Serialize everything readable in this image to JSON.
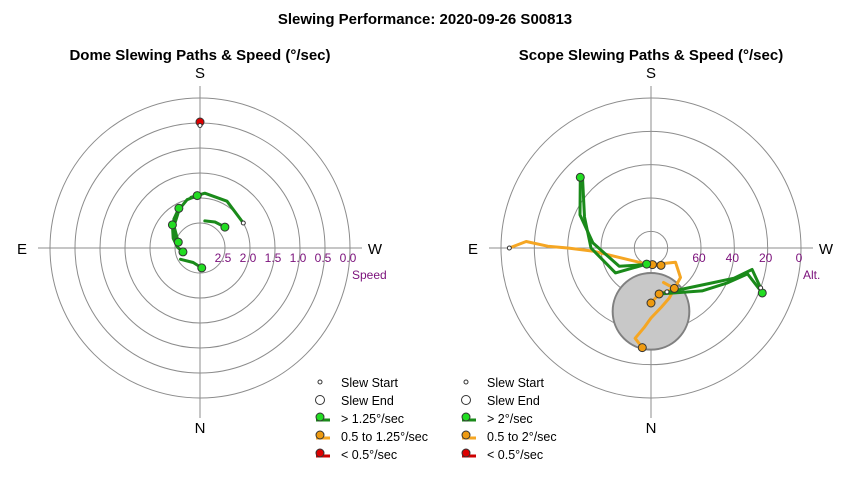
{
  "figure": {
    "title": "Slewing Performance: 2020-09-26 S00813"
  },
  "colors": {
    "fast": "#1a8a1a",
    "fast_fill": "#22dd22",
    "medium": "#f5a623",
    "medium_fill": "#ee9a10",
    "slow": "#cc0000",
    "slow_fill": "#dd0000",
    "ring": "#8c8c8c",
    "axis": "#8c8c8c",
    "tick_label": "#7b107b",
    "obstruction_fill": "#c8c8c8",
    "obstruction_stroke": "#808080"
  },
  "chart_data": [
    {
      "type": "polar-path",
      "title": "Dome Slewing Paths & Speed (°/sec)",
      "compass": {
        "top": "S",
        "bottom": "N",
        "left": "E",
        "right": "W"
      },
      "radial_axis": {
        "label": "Speed",
        "ticks": [
          {
            "value": 0.0,
            "label": "0.0"
          },
          {
            "value": 0.5,
            "label": "0.5"
          },
          {
            "value": 1.0,
            "label": "1.0"
          },
          {
            "value": 1.5,
            "label": "1.5"
          },
          {
            "value": 2.0,
            "label": "2.0"
          },
          {
            "value": 2.5,
            "label": "2.5"
          }
        ],
        "outer_value": 0.0,
        "inner_value": 3.0,
        "rings": [
          0.5,
          1.0,
          1.5,
          2.0,
          2.5
        ]
      },
      "legend": [
        {
          "kind": "start",
          "label": "Slew Start"
        },
        {
          "kind": "end",
          "label": "Slew End"
        },
        {
          "kind": "fast",
          "label": "> 1.25°/sec"
        },
        {
          "kind": "medium",
          "label": "0.5 to 1.25°/sec"
        },
        {
          "kind": "slow",
          "label": "< 0.5°/sec"
        }
      ],
      "series": [
        {
          "speed": "fast",
          "points": [
            [
              165,
              2.55
            ],
            [
              140,
              2.32
            ],
            [
              118,
              2.12
            ],
            [
              105,
              2.0
            ],
            [
              93,
              1.95
            ]
          ]
        },
        {
          "speed": "fast",
          "points": [
            [
              165,
              2.55
            ],
            [
              150,
              2.38
            ],
            [
              132,
              2.22
            ],
            [
              118,
              2.1
            ]
          ]
        },
        {
          "speed": "fast",
          "points": [
            [
              193,
              2.65
            ],
            [
              178,
              2.55
            ],
            [
              160,
              2.43
            ],
            [
              140,
              2.28
            ]
          ]
        },
        {
          "speed": "fast",
          "points": [
            [
              210,
              2.55
            ],
            [
              245,
              2.68
            ],
            [
              275,
              2.6
            ]
          ]
        },
        {
          "speed": "fast",
          "points": [
            [
              30,
              2.0
            ],
            [
              60,
              1.92
            ],
            [
              85,
              1.9
            ],
            [
              100,
              1.97
            ]
          ]
        },
        {
          "speed": "fast",
          "points": [
            [
              40,
              2.35
            ],
            [
              60,
              2.4
            ],
            [
              80,
              2.45
            ]
          ]
        },
        {
          "speed": "slow",
          "points": [
            [
              90,
              0.55
            ],
            [
              90,
              0.48
            ]
          ]
        }
      ],
      "end_markers": [
        {
          "az": 93,
          "r": 1.95,
          "speed": "fast"
        },
        {
          "az": 118,
          "r": 2.1,
          "speed": "fast"
        },
        {
          "az": 140,
          "r": 2.28,
          "speed": "fast"
        },
        {
          "az": 165,
          "r": 2.55,
          "speed": "fast"
        },
        {
          "az": 193,
          "r": 2.65,
          "speed": "fast"
        },
        {
          "az": 275,
          "r": 2.6,
          "speed": "fast"
        },
        {
          "az": 40,
          "r": 2.35,
          "speed": "fast"
        },
        {
          "az": 90,
          "r": 0.48,
          "speed": "slow"
        }
      ],
      "start_markers": [
        {
          "az": 30,
          "r": 2.0
        },
        {
          "az": 90,
          "r": 0.55
        }
      ]
    },
    {
      "type": "polar-path",
      "title": "Scope Slewing Paths & Speed (°/sec)",
      "compass": {
        "top": "S",
        "bottom": "N",
        "left": "E",
        "right": "W"
      },
      "radial_axis": {
        "label": "Alt.",
        "ticks": [
          {
            "value": 0,
            "label": "0"
          },
          {
            "value": 20,
            "label": "20"
          },
          {
            "value": 40,
            "label": "40"
          },
          {
            "value": 60,
            "label": "60"
          }
        ],
        "outer_value": 0,
        "inner_value": 90,
        "rings": [
          0,
          20,
          40,
          60,
          80
        ]
      },
      "obstruction": {
        "az": 0,
        "alt": 52,
        "radius_deg": 23
      },
      "legend": [
        {
          "kind": "start",
          "label": "Slew Start"
        },
        {
          "kind": "end",
          "label": "Slew End"
        },
        {
          "kind": "fast",
          "label": "> 2°/sec"
        },
        {
          "kind": "medium",
          "label": "0.5 to 2°/sec"
        },
        {
          "kind": "slow",
          "label": "< 0.5°/sec"
        }
      ],
      "series": [
        {
          "speed": "medium",
          "points": [
            [
              180,
              5
            ],
            [
              177,
              15
            ],
            [
              179,
              28
            ],
            [
              180,
              40
            ],
            [
              183,
              55
            ],
            [
              200,
              72
            ],
            [
              260,
              80
            ],
            [
              300,
              78
            ]
          ]
        },
        {
          "speed": "fast",
          "points": [
            [
              260,
              80
            ],
            [
              210,
              68
            ],
            [
              175,
              55
            ],
            [
              155,
              43
            ],
            [
              135,
              30
            ]
          ]
        },
        {
          "speed": "fast",
          "points": [
            [
              255,
              80
            ],
            [
              215,
              64
            ],
            [
              180,
              54
            ],
            [
              155,
              46
            ],
            [
              135,
              32
            ]
          ]
        },
        {
          "speed": "medium",
          "points": [
            [
              275,
              80
            ],
            [
              330,
              73
            ],
            [
              315,
              65
            ],
            [
              290,
              58
            ],
            [
              280,
              54
            ],
            [
              270,
              48
            ],
            [
              265,
              42
            ],
            [
              260,
              35
            ],
            [
              265,
              30
            ]
          ]
        },
        {
          "speed": "medium",
          "points": [
            [
              290,
              68
            ],
            [
              300,
              62
            ],
            [
              280,
              62
            ],
            [
              270,
              57
            ]
          ]
        },
        {
          "speed": "fast",
          "points": [
            [
              280,
              62
            ],
            [
              320,
              50
            ],
            [
              335,
              40
            ],
            [
              345,
              30
            ],
            [
              338,
              18
            ]
          ]
        },
        {
          "speed": "fast",
          "points": [
            [
              280,
              62
            ],
            [
              330,
              48
            ],
            [
              340,
              37
            ],
            [
              348,
              28
            ],
            [
              340,
              20
            ]
          ]
        }
      ],
      "end_markers": [
        {
          "az": 275,
          "r": 80,
          "speed": "medium"
        },
        {
          "az": 300,
          "r": 78,
          "speed": "medium"
        },
        {
          "az": 265,
          "r": 30,
          "speed": "medium"
        },
        {
          "az": 300,
          "r": 62,
          "speed": "medium"
        },
        {
          "az": 270,
          "r": 57,
          "speed": "medium"
        },
        {
          "az": 280,
          "r": 62,
          "speed": "medium"
        },
        {
          "az": 255,
          "r": 80,
          "speed": "fast"
        },
        {
          "az": 135,
          "r": 30,
          "speed": "fast"
        },
        {
          "az": 338,
          "r": 18,
          "speed": "fast"
        }
      ],
      "start_markers": [
        {
          "az": 180,
          "r": 5
        },
        {
          "az": 340,
          "r": 20
        },
        {
          "az": 290,
          "r": 62
        }
      ]
    }
  ]
}
